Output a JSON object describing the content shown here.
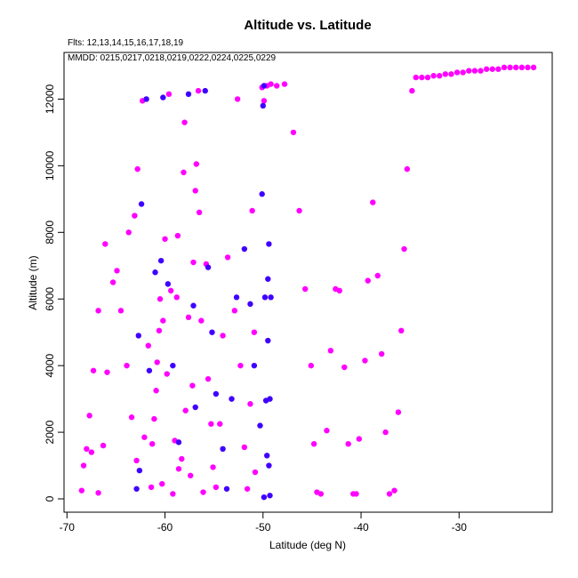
{
  "chart_data": {
    "type": "scatter",
    "title": "Altitude vs. Latitude",
    "annotations": [
      "Flts: 12,13,14,15,16,17,18,19",
      "MMDD: 0215,0217,0218,0219,0222,0224,0225,0229"
    ],
    "xlabel": "Latitude (deg N)",
    "ylabel": "Altitude (m)",
    "xlim": [
      -70.3,
      -20.5
    ],
    "ylim": [
      -400,
      13400
    ],
    "xticks": [
      -70,
      -60,
      -50,
      -40,
      -30
    ],
    "yticks": [
      0,
      2000,
      4000,
      6000,
      8000,
      10000,
      12000
    ],
    "grid": false,
    "legend": "none",
    "series": [
      {
        "color": "#ff00ff",
        "points": [
          [
            -68.5,
            250
          ],
          [
            -68.3,
            1000
          ],
          [
            -68.0,
            1500
          ],
          [
            -67.5,
            1400
          ],
          [
            -67.7,
            2500
          ],
          [
            -67.3,
            3850
          ],
          [
            -66.8,
            180
          ],
          [
            -66.8,
            5650
          ],
          [
            -66.3,
            1600
          ],
          [
            -66.1,
            7650
          ],
          [
            -65.9,
            3800
          ],
          [
            -65.3,
            6500
          ],
          [
            -64.9,
            6850
          ],
          [
            -64.5,
            5650
          ],
          [
            -63.9,
            4000
          ],
          [
            -63.7,
            8000
          ],
          [
            -63.4,
            2450
          ],
          [
            -63.1,
            8500
          ],
          [
            -62.9,
            1150
          ],
          [
            -62.8,
            9900
          ],
          [
            -62.3,
            11950
          ],
          [
            -62.1,
            1850
          ],
          [
            -61.7,
            4600
          ],
          [
            -61.4,
            350
          ],
          [
            -61.3,
            1650
          ],
          [
            -61.1,
            2400
          ],
          [
            -60.9,
            3250
          ],
          [
            -60.8,
            4100
          ],
          [
            -60.6,
            5050
          ],
          [
            -60.5,
            6000
          ],
          [
            -60.3,
            450
          ],
          [
            -60.2,
            5350
          ],
          [
            -60.0,
            7800
          ],
          [
            -59.8,
            3750
          ],
          [
            -59.6,
            12150
          ],
          [
            -59.4,
            6250
          ],
          [
            -59.2,
            150
          ],
          [
            -59.0,
            1750
          ],
          [
            -58.8,
            6050
          ],
          [
            -58.7,
            7900
          ],
          [
            -58.6,
            900
          ],
          [
            -58.3,
            1200
          ],
          [
            -58.1,
            9800
          ],
          [
            -58.0,
            11300
          ],
          [
            -57.9,
            2650
          ],
          [
            -57.6,
            5450
          ],
          [
            -57.4,
            700
          ],
          [
            -57.2,
            3400
          ],
          [
            -57.1,
            7100
          ],
          [
            -56.9,
            9250
          ],
          [
            -56.8,
            10050
          ],
          [
            -56.6,
            12250
          ],
          [
            -56.5,
            8600
          ],
          [
            -56.3,
            5350
          ],
          [
            -56.1,
            200
          ],
          [
            -55.8,
            7050
          ],
          [
            -55.6,
            3600
          ],
          [
            -55.3,
            2250
          ],
          [
            -55.1,
            950
          ],
          [
            -54.8,
            350
          ],
          [
            -54.4,
            2250
          ],
          [
            -54.1,
            4900
          ],
          [
            -53.6,
            7250
          ],
          [
            -52.9,
            5650
          ],
          [
            -52.6,
            12000
          ],
          [
            -52.3,
            4000
          ],
          [
            -51.9,
            1550
          ],
          [
            -51.6,
            300
          ],
          [
            -51.3,
            2850
          ],
          [
            -51.1,
            8650
          ],
          [
            -50.9,
            5000
          ],
          [
            -50.8,
            800
          ],
          [
            -50.1,
            12350
          ],
          [
            -49.9,
            11950
          ],
          [
            -49.6,
            12400
          ],
          [
            -49.2,
            12450
          ],
          [
            -48.6,
            12400
          ],
          [
            -47.8,
            12450
          ],
          [
            -46.9,
            11000
          ],
          [
            -46.3,
            8650
          ],
          [
            -45.7,
            6300
          ],
          [
            -45.1,
            4000
          ],
          [
            -44.8,
            1650
          ],
          [
            -44.5,
            200
          ],
          [
            -44.1,
            150
          ],
          [
            -43.5,
            2050
          ],
          [
            -43.1,
            4450
          ],
          [
            -42.6,
            6300
          ],
          [
            -42.2,
            6250
          ],
          [
            -41.7,
            3950
          ],
          [
            -41.3,
            1650
          ],
          [
            -40.8,
            150
          ],
          [
            -40.5,
            150
          ],
          [
            -40.2,
            1800
          ],
          [
            -39.6,
            4150
          ],
          [
            -39.3,
            6550
          ],
          [
            -38.8,
            8900
          ],
          [
            -38.3,
            6700
          ],
          [
            -37.9,
            4350
          ],
          [
            -37.5,
            2000
          ],
          [
            -37.1,
            150
          ],
          [
            -36.6,
            250
          ],
          [
            -36.2,
            2600
          ],
          [
            -35.9,
            5050
          ],
          [
            -35.6,
            7500
          ],
          [
            -35.3,
            9900
          ],
          [
            -34.8,
            12250
          ],
          [
            -34.4,
            12650
          ],
          [
            -33.8,
            12650
          ],
          [
            -33.2,
            12650
          ],
          [
            -32.6,
            12700
          ],
          [
            -32.0,
            12700
          ],
          [
            -31.4,
            12750
          ],
          [
            -30.8,
            12750
          ],
          [
            -30.2,
            12800
          ],
          [
            -29.6,
            12800
          ],
          [
            -29.0,
            12850
          ],
          [
            -28.4,
            12850
          ],
          [
            -27.8,
            12850
          ],
          [
            -27.2,
            12900
          ],
          [
            -26.6,
            12900
          ],
          [
            -26.0,
            12900
          ],
          [
            -25.4,
            12950
          ],
          [
            -24.8,
            12950
          ],
          [
            -24.2,
            12950
          ],
          [
            -23.6,
            12950
          ],
          [
            -23.0,
            12950
          ],
          [
            -22.4,
            12950
          ]
        ]
      },
      {
        "color": "#3f00ff",
        "points": [
          [
            -62.9,
            300
          ],
          [
            -62.6,
            850
          ],
          [
            -62.4,
            8850
          ],
          [
            -62.7,
            4900
          ],
          [
            -61.9,
            12000
          ],
          [
            -61.6,
            3850
          ],
          [
            -61.0,
            6800
          ],
          [
            -60.4,
            7150
          ],
          [
            -60.2,
            12050
          ],
          [
            -59.7,
            6450
          ],
          [
            -59.2,
            4000
          ],
          [
            -58.6,
            1700
          ],
          [
            -57.6,
            12150
          ],
          [
            -57.1,
            5800
          ],
          [
            -56.9,
            2750
          ],
          [
            -55.9,
            12250
          ],
          [
            -55.6,
            6950
          ],
          [
            -55.2,
            5000
          ],
          [
            -54.8,
            3150
          ],
          [
            -54.1,
            1500
          ],
          [
            -53.7,
            300
          ],
          [
            -53.2,
            3000
          ],
          [
            -52.7,
            6050
          ],
          [
            -51.9,
            7500
          ],
          [
            -51.3,
            5850
          ],
          [
            -50.9,
            4000
          ],
          [
            -50.3,
            2200
          ],
          [
            -50.1,
            9150
          ],
          [
            -50.0,
            11800
          ],
          [
            -49.9,
            12400
          ],
          [
            -49.8,
            6050
          ],
          [
            -49.5,
            4750
          ],
          [
            -49.3,
            3000
          ],
          [
            -49.6,
            1300
          ],
          [
            -49.2,
            6050
          ],
          [
            -49.5,
            6600
          ],
          [
            -49.4,
            7650
          ],
          [
            -49.4,
            1000
          ],
          [
            -49.3,
            100
          ],
          [
            -49.9,
            50
          ],
          [
            -49.7,
            2950
          ]
        ]
      }
    ]
  }
}
